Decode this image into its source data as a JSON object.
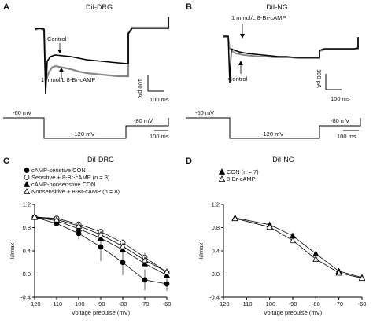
{
  "panels": {
    "A": {
      "letter": "A",
      "title": "DiI-DRG",
      "control_label": "Control",
      "drug_label": "1 mmol/L 8-Br-cAMP",
      "scale_y": "100 pA",
      "scale_x": "100 ms",
      "protocol": {
        "hold": "-60 mV",
        "step": "-120 mV",
        "tail": "-80 mV",
        "scale_x": "100 ms"
      }
    },
    "B": {
      "letter": "B",
      "title": "DiI-NG",
      "control_label": "Control",
      "drug_label": "1 mmol/L 8-Br-cAMP",
      "scale_y": "100 pA",
      "scale_x": "100 ms",
      "protocol": {
        "hold": "-60 mV",
        "step": "-120 mV",
        "tail": "-80 mV",
        "scale_x": "100 ms"
      }
    },
    "C": {
      "letter": "C",
      "title": "DiI-DRG"
    },
    "D": {
      "letter": "D",
      "title": "DiI-NG"
    }
  },
  "chart_data": [
    {
      "type": "scatter",
      "panel": "C",
      "title": "DiI-DRG",
      "xlabel": "Voltage prepulse (mV)",
      "ylabel": "I/Imax",
      "xlim": [
        -120,
        -60
      ],
      "ylim": [
        -0.4,
        1.2
      ],
      "xticks": [
        -120,
        -110,
        -100,
        -90,
        -80,
        -70,
        -60
      ],
      "yticks": [
        -0.4,
        0.0,
        0.4,
        0.8,
        1.2
      ],
      "ytick_labels": [
        "-0.4",
        "0.0",
        "0.4",
        "0.8",
        "1.2"
      ],
      "legend": "top-left",
      "x": [
        -120,
        -110,
        -100,
        -90,
        -80,
        -70,
        -60
      ],
      "series": [
        {
          "name": "cAMP-senstive CON",
          "marker": "filled-circle",
          "values": [
            0.98,
            0.87,
            0.7,
            0.47,
            0.2,
            -0.1,
            -0.17
          ],
          "err": [
            0.02,
            0.05,
            0.1,
            0.25,
            0.22,
            0.18,
            0.12
          ]
        },
        {
          "name": "Sensitive + 8-Br-cAMP (n = 3)",
          "marker": "open-circle",
          "values": [
            0.98,
            0.96,
            0.86,
            0.73,
            0.54,
            0.29,
            0.03
          ],
          "err": [
            0.02,
            0.03,
            0.04,
            0.05,
            0.06,
            0.07,
            0.06
          ]
        },
        {
          "name": "cAMP-nonsenstive CON",
          "marker": "filled-triangle",
          "values": [
            0.98,
            0.92,
            0.78,
            0.62,
            0.42,
            0.18,
            -0.02
          ],
          "err": [
            0.02,
            0.03,
            0.04,
            0.05,
            0.06,
            0.06,
            0.05
          ]
        },
        {
          "name": "Nonsensitive + 8-Br-cAMP (n = 8)",
          "marker": "open-triangle",
          "values": [
            0.99,
            0.94,
            0.83,
            0.68,
            0.48,
            0.24,
            0.04
          ],
          "err": [
            0.02,
            0.03,
            0.04,
            0.05,
            0.05,
            0.06,
            0.05
          ]
        }
      ]
    },
    {
      "type": "scatter",
      "panel": "D",
      "title": "DiI-NG",
      "xlabel": "Voltage prepulse (mV)",
      "ylabel": "I/Imax",
      "xlim": [
        -120,
        -60
      ],
      "ylim": [
        -0.4,
        1.2
      ],
      "xticks": [
        -120,
        -110,
        -100,
        -90,
        -80,
        -70,
        -60
      ],
      "yticks": [
        -0.4,
        0.0,
        0.4,
        0.8,
        1.2
      ],
      "ytick_labels": [
        "-0.4",
        "0.0",
        "0.4",
        "0.8",
        "1.2"
      ],
      "legend": "top-left",
      "x": [
        -115,
        -100,
        -90,
        -80,
        -70,
        -60
      ],
      "series": [
        {
          "name": "CON (n = 7)",
          "marker": "filled-triangle",
          "values": [
            0.97,
            0.85,
            0.66,
            0.35,
            0.05,
            -0.06
          ],
          "err": [
            0.02,
            0.03,
            0.04,
            0.04,
            0.03,
            0.03
          ]
        },
        {
          "name": "8-Br-cAMP",
          "marker": "open-triangle",
          "values": [
            0.96,
            0.81,
            0.58,
            0.26,
            0.02,
            -0.07
          ],
          "err": [
            0.02,
            0.03,
            0.04,
            0.04,
            0.03,
            0.03
          ]
        }
      ]
    }
  ]
}
